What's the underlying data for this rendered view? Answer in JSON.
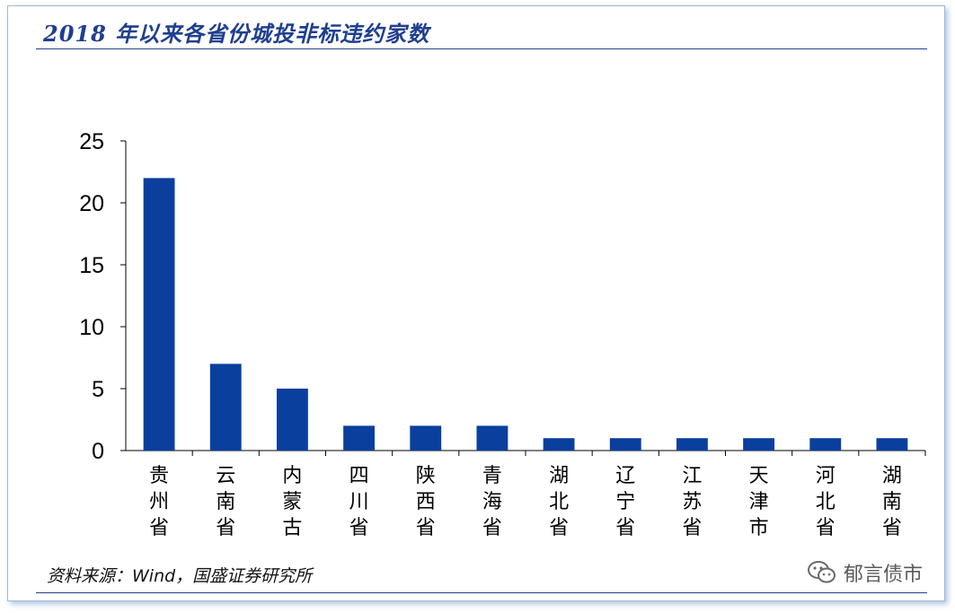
{
  "chart_data": {
    "type": "bar",
    "title": "2018 年以来各省份城投非标违约家数",
    "categories": [
      "贵州省",
      "云南省",
      "内蒙古",
      "四川省",
      "陕西省",
      "青海省",
      "湖北省",
      "辽宁省",
      "江苏省",
      "天津市",
      "河北省",
      "湖南省"
    ],
    "values": [
      22,
      7,
      5,
      2,
      2,
      2,
      1,
      1,
      1,
      1,
      1,
      1
    ],
    "yticks": [
      "0",
      "5",
      "10",
      "15",
      "20",
      "25"
    ],
    "ylim": [
      0,
      25
    ],
    "grid": false,
    "legend": "none",
    "bar_color": "#0a3f9e"
  },
  "source_text": "资料来源：Wind，国盛证券研究所",
  "watermark": {
    "text": "郁言债市",
    "icon": "wechat-icon"
  },
  "colors": {
    "title": "#1f3f8f",
    "rule": "#1f3f8f",
    "watermark": "#5a5a5a"
  }
}
